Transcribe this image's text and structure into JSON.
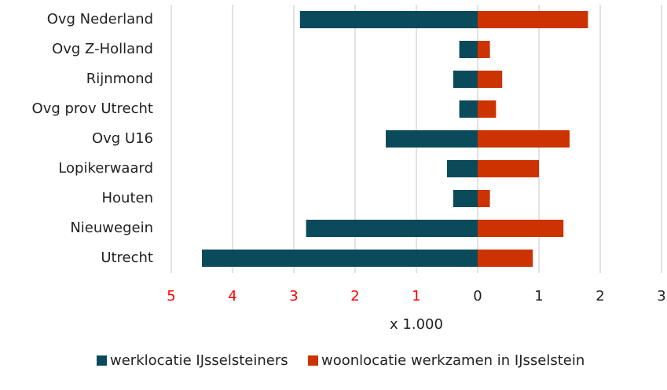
{
  "chart_data": {
    "type": "bar",
    "orientation": "horizontal",
    "categories": [
      "Ovg Nederland",
      "Ovg Z-Holland",
      "Rijnmond",
      "Ovg prov Utrecht",
      "Ovg U16",
      "Lopikerwaard",
      "Houten",
      "Nieuwegein",
      "Utrecht"
    ],
    "series": [
      {
        "name": "werklocatie IJsselsteiners",
        "color": "#0b4a5a",
        "values": [
          -2.9,
          -0.3,
          -0.4,
          -0.3,
          -1.5,
          -0.5,
          -0.4,
          -2.8,
          -4.5
        ]
      },
      {
        "name": "woonlocatie werkzamen in IJsselstein",
        "color": "#cc3300",
        "values": [
          1.8,
          0.2,
          0.4,
          0.3,
          1.5,
          1.0,
          0.2,
          1.4,
          0.9
        ]
      }
    ],
    "xlabel": "x 1.000",
    "xlim": [
      -5,
      3
    ],
    "xticks": [
      {
        "value": -5,
        "label": "5"
      },
      {
        "value": -4,
        "label": "4"
      },
      {
        "value": -3,
        "label": "3"
      },
      {
        "value": -2,
        "label": "2"
      },
      {
        "value": -1,
        "label": "1"
      },
      0,
      1,
      2,
      3
    ],
    "negative_tick_color": "#ff0000",
    "grid": true,
    "legend": "bottom"
  }
}
